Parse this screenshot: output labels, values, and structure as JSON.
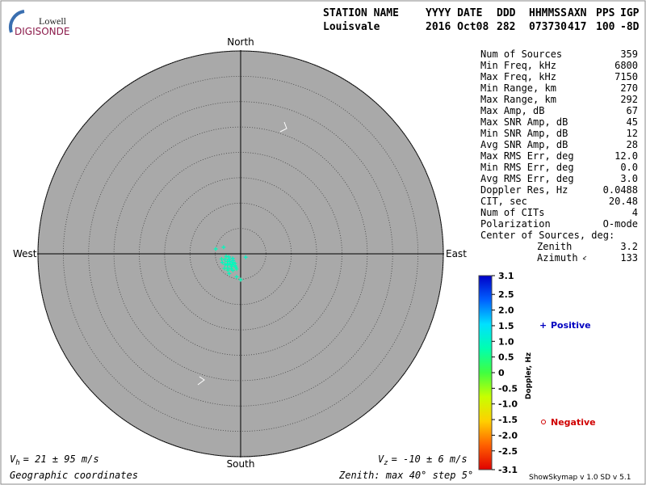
{
  "logo": {
    "top": "Lowell",
    "bottom": "DIGISONDE"
  },
  "header": {
    "labels": [
      "STATION NAME",
      "YYYY DATE",
      "DDD",
      "HHMMSS",
      "AXN",
      "PPS",
      "IGP"
    ],
    "values": [
      "Louisvale",
      "2016 Oct08",
      "282",
      "073730",
      "417",
      "100",
      "-8D"
    ]
  },
  "stats": [
    {
      "label": "Num of Sources",
      "value": "359"
    },
    {
      "label": "Min Freq, kHz",
      "value": "6800"
    },
    {
      "label": "Max Freq, kHz",
      "value": "7150"
    },
    {
      "label": "Min Range, km",
      "value": "270"
    },
    {
      "label": "Max Range, km",
      "value": "292"
    },
    {
      "label": "Max Amp, dB",
      "value": "67"
    },
    {
      "label": "Max SNR Amp, dB",
      "value": "45"
    },
    {
      "label": "Min SNR Amp, dB",
      "value": "12"
    },
    {
      "label": "Avg SNR Amp, dB",
      "value": "28"
    },
    {
      "label": "Max RMS Err, deg",
      "value": "12.0"
    },
    {
      "label": "Min RMS Err, deg",
      "value": "0.0"
    },
    {
      "label": "Avg RMS Err, deg",
      "value": "3.0"
    },
    {
      "label": "Doppler Res, Hz",
      "value": "0.0488"
    },
    {
      "label": "CIT, sec",
      "value": "20.48"
    },
    {
      "label": "Num of CITs",
      "value": "4"
    },
    {
      "label": "Polarization",
      "value": "O-mode"
    }
  ],
  "center": {
    "title": "Center of Sources, deg:",
    "rows": [
      {
        "label": "Zenith",
        "value": "3.2"
      },
      {
        "label": "Azimuth",
        "value": "133"
      }
    ]
  },
  "chart_data": {
    "type": "polar_scatter",
    "directions": {
      "north": "North",
      "south": "South",
      "west": "West",
      "east": "East"
    },
    "rlim": [
      0,
      40
    ],
    "rticks": [
      5,
      10,
      15,
      20,
      25,
      30,
      35,
      40
    ],
    "points": {
      "zenith": [
        2.9,
        3.1,
        2.6,
        3.4,
        2.2,
        3.8,
        2.5,
        3.0,
        3.6,
        2.0,
        2.8,
        3.3,
        4.1,
        2.4,
        3.7,
        2.7,
        3.2,
        4.3,
        1.8,
        3.5,
        2.9,
        4.0,
        2.3,
        3.1,
        4.5,
        5.0,
        5.1,
        3.6,
        1.2,
        4.6,
        3.9,
        2.6
      ],
      "azimuth": [
        225,
        215,
        235,
        230,
        210,
        222,
        245,
        240,
        205,
        228,
        200,
        250,
        218,
        255,
        236,
        218,
        232,
        228,
        240,
        212,
        260,
        245,
        222,
        195,
        210,
        281,
        180,
        291,
        124,
        190,
        255,
        205
      ],
      "doppler": [
        0.9,
        0.8,
        1.0,
        0.9,
        0.85,
        0.9,
        0.95,
        0.8,
        0.9,
        1.0,
        0.85,
        0.9,
        0.8,
        0.95,
        0.9,
        0.85,
        0.9,
        0.8,
        1.0,
        0.9,
        0.85,
        0.9,
        0.95,
        0.8,
        0.9,
        0.9,
        0.85,
        0.9,
        1.0,
        0.9,
        0.8,
        0.95
      ]
    },
    "colorbar": {
      "label": "Doppler, Hz",
      "lim": [
        -3.1,
        3.1
      ],
      "colors": [
        "#0000c8",
        "#0060ff",
        "#00e0ff",
        "#00ffb0",
        "#40ff40",
        "#c8ff00",
        "#ffd000",
        "#ff6000",
        "#e00000"
      ],
      "ticks": [
        3.1,
        2.5,
        {
          "value": 2,
          "label": "2.0"
        },
        1.5,
        {
          "value": 1,
          "label": "1.0"
        },
        0.5,
        0,
        -0.5,
        {
          "value": -1,
          "label": "-1.0"
        },
        -1.5,
        {
          "value": -2,
          "label": "-2.0"
        },
        -2.5,
        -3.1
      ]
    },
    "legend": {
      "positive": "Positive",
      "negative": "Negative"
    }
  },
  "footer": {
    "vh": {
      "symbol": "V",
      "sub": "h",
      "text": "= 21 ± 95 m/s"
    },
    "vz": {
      "symbol": "V",
      "sub": "z",
      "text": "= -10 ± 6 m/s"
    },
    "coords": "Geographic coordinates",
    "zenith_note": "Zenith: max 40°  step 5°",
    "version": "ShowSkymap v 1.0  SD v 5.1"
  }
}
